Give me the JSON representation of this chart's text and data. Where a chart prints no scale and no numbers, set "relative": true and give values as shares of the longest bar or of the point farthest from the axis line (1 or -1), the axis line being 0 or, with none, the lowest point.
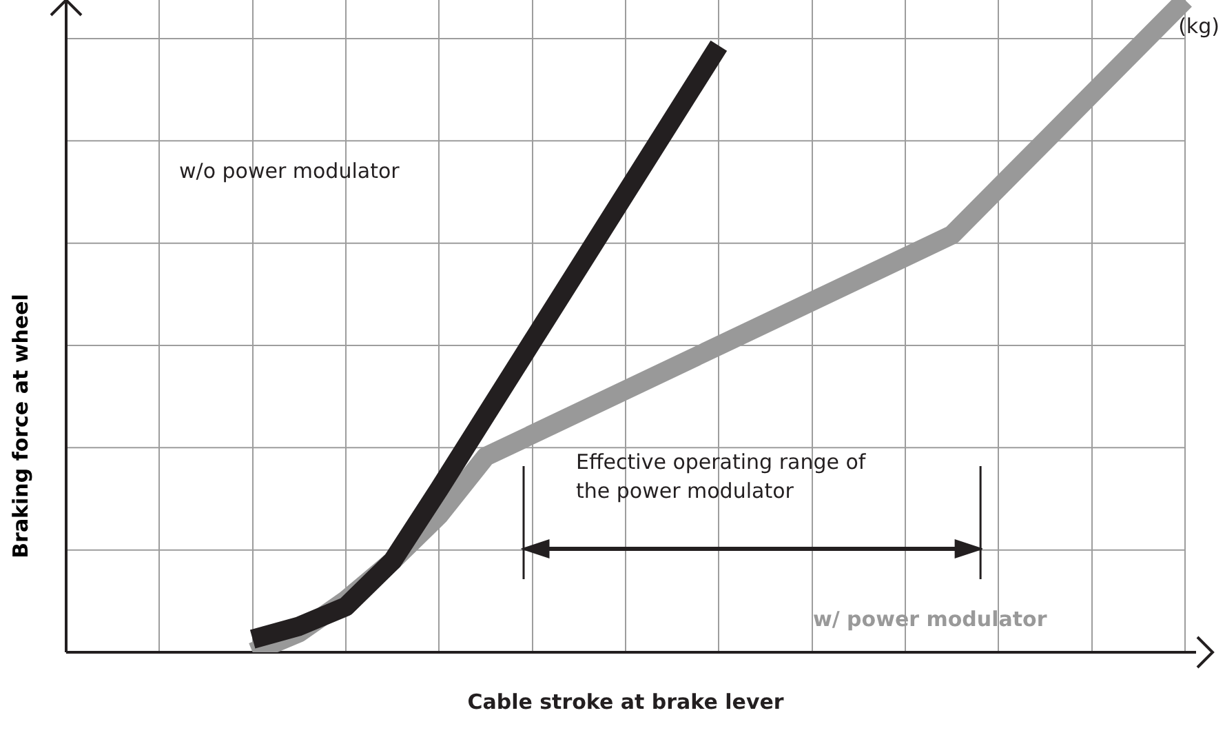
{
  "chart_data": {
    "type": "line",
    "relative": true,
    "xlabel": "Cable stroke at brake lever",
    "ylabel": "Braking force at wheel",
    "categories": [
      null,
      null,
      null,
      null,
      null,
      null,
      null,
      null,
      null,
      null,
      null,
      null,
      null,
      null,
      null,
      null,
      null,
      null,
      null,
      null,
      null,
      null,
      null,
      null,
      null
    ],
    "series": [
      {
        "name": "w/o power modulator",
        "color": "#231f20",
        "values": [
          null,
          null,
          null,
          null,
          0.02,
          0.04,
          0.07,
          0.14,
          0.25,
          null,
          null,
          null,
          null,
          null,
          0.93,
          null,
          null,
          null,
          null,
          null,
          null,
          null,
          null,
          null,
          null
        ]
      },
      {
        "name": "w/ power modulator",
        "color": "#999999",
        "values": [
          null,
          null,
          null,
          null,
          0,
          0.03,
          0.08,
          0.14,
          0.21,
          0.3,
          null,
          null,
          null,
          null,
          null,
          null,
          null,
          null,
          null,
          0.64,
          null,
          null,
          null,
          null,
          1
        ]
      }
    ],
    "annotations": [
      "(kg)",
      "Effective operating range of the power modulator"
    ],
    "grid": true,
    "legend": false,
    "marker": "none",
    "line_style": "solid"
  }
}
